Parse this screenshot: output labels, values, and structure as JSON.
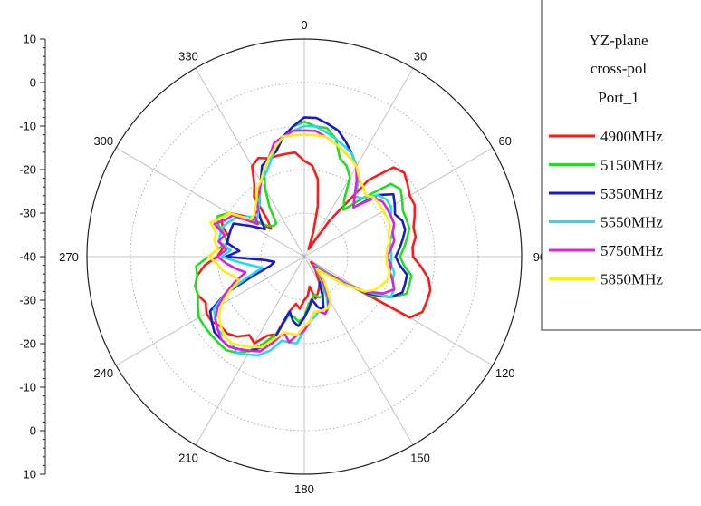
{
  "chart_data": {
    "type": "polar-line",
    "legend_title_lines": [
      "YZ-plane",
      "cross-pol",
      "Port_1"
    ],
    "legend_placement": "right",
    "radial_axis": {
      "min": -40,
      "max": 10,
      "step": 10,
      "tick_labels_upper": [
        "10",
        "0",
        "-10",
        "-20",
        "-30",
        "-40"
      ],
      "tick_labels_lower": [
        "-30",
        "-20",
        "-10",
        "0",
        "10"
      ]
    },
    "angle_labels": [
      "0",
      "30",
      "60",
      "90",
      "120",
      "150",
      "180",
      "210",
      "240",
      "270",
      "300",
      "330"
    ],
    "grid": true,
    "series": [
      {
        "name": "4900MHz",
        "color": "#ff1a1a",
        "values": [
          -18,
          -19,
          -22,
          -28,
          -34,
          -37,
          -38,
          -30,
          -17,
          -11,
          -10,
          -11,
          -12,
          -12,
          -13,
          -14,
          -14,
          -15,
          -15,
          -13,
          -11,
          -10,
          -10,
          -10,
          -12,
          -33,
          -38,
          -37,
          -36,
          -35,
          -33,
          -32,
          -31,
          -30,
          -33,
          -31,
          -30,
          -28,
          -29,
          -27,
          -21,
          -20,
          -17,
          -18,
          -16,
          -15,
          -15,
          -14,
          -14,
          -15,
          -14,
          -14,
          -15,
          -17,
          -20,
          -21,
          -22,
          -22,
          -20,
          -19,
          -20,
          -24,
          -30,
          -28,
          -22,
          -20,
          -16,
          -15,
          -16,
          -16,
          -16,
          -16
        ]
      },
      {
        "name": "5150MHz",
        "color": "#22dd22",
        "values": [
          -9,
          -10,
          -10,
          -12,
          -16,
          -17,
          -19,
          -24,
          -26,
          -21,
          -14,
          -13,
          -14,
          -15,
          -15,
          -15,
          -16,
          -17,
          -18,
          -17,
          -15,
          -15,
          -15,
          -18,
          -22,
          -30,
          -37,
          -36,
          -35,
          -33,
          -31,
          -30,
          -30,
          -31,
          -30,
          -29,
          -26,
          -25,
          -26,
          -26,
          -21,
          -18,
          -15,
          -13,
          -12,
          -12,
          -12,
          -12,
          -12,
          -13,
          -14,
          -14,
          -15,
          -15,
          -18,
          -20,
          -22,
          -21,
          -19,
          -18,
          -20,
          -25,
          -29,
          -30,
          -30,
          -26,
          -22,
          -18,
          -16,
          -15,
          -12,
          -10
        ]
      },
      {
        "name": "5350MHz",
        "color": "#1a1acc",
        "values": [
          -8,
          -8,
          -9,
          -10,
          -12,
          -14,
          -16,
          -19,
          -22,
          -24,
          -18,
          -15,
          -16,
          -17,
          -16,
          -16,
          -17,
          -18,
          -19,
          -18,
          -16,
          -16,
          -16,
          -18,
          -23,
          -30,
          -37,
          -37,
          -35,
          -33,
          -33,
          -30,
          -27,
          -28,
          -30,
          -28,
          -26,
          -24,
          -25,
          -27,
          -20,
          -17,
          -15,
          -14,
          -13,
          -13,
          -13,
          -14,
          -15,
          -20,
          -28,
          -32,
          -33,
          -31,
          -22,
          -25,
          -22,
          -22,
          -22,
          -22,
          -26,
          -29,
          -27,
          -25,
          -24,
          -22,
          -20,
          -17,
          -16,
          -15,
          -12,
          -10
        ]
      },
      {
        "name": "5550MHz",
        "color": "#22ddee",
        "values": [
          -10,
          -10,
          -11,
          -12,
          -13,
          -14,
          -16,
          -18,
          -22,
          -21,
          -18,
          -17,
          -17,
          -18,
          -18,
          -19,
          -20,
          -20,
          -20,
          -20,
          -19,
          -19,
          -18,
          -18,
          -24,
          -31,
          -37,
          -37,
          -35,
          -33,
          -30,
          -27,
          -26,
          -27,
          -26,
          -25,
          -23,
          -20,
          -20,
          -20,
          -17,
          -15,
          -14,
          -13,
          -14,
          -14,
          -14,
          -15,
          -16,
          -20,
          -26,
          -30,
          -28,
          -25,
          -21,
          -23,
          -20,
          -20,
          -20,
          -21,
          -22,
          -24,
          -26,
          -25,
          -24,
          -22,
          -20,
          -19,
          -17,
          -14,
          -12,
          -11
        ]
      },
      {
        "name": "5750MHz",
        "color": "#dd22dd",
        "values": [
          -11,
          -11,
          -12,
          -13,
          -14,
          -15,
          -16,
          -19,
          -22,
          -24,
          -19,
          -18,
          -18,
          -18,
          -18,
          -19,
          -19,
          -20,
          -21,
          -20,
          -20,
          -19,
          -18,
          -20,
          -24,
          -30,
          -35,
          -37,
          -34,
          -32,
          -29,
          -27,
          -26,
          -27,
          -27,
          -25,
          -23,
          -22,
          -20,
          -22,
          -19,
          -16,
          -15,
          -14,
          -13,
          -13,
          -14,
          -15,
          -17,
          -20,
          -23,
          -26,
          -24,
          -22,
          -20,
          -22,
          -20,
          -21,
          -18,
          -20,
          -21,
          -27,
          -25,
          -25,
          -23,
          -22,
          -20,
          -18,
          -16,
          -13,
          -12,
          -11
        ]
      },
      {
        "name": "5850MHz",
        "color": "#ffee11",
        "values": [
          -12,
          -12,
          -12,
          -13,
          -14,
          -15,
          -16,
          -18,
          -19,
          -20,
          -19,
          -19,
          -19,
          -19,
          -19,
          -20,
          -20,
          -21,
          -21,
          -21,
          -20,
          -20,
          -21,
          -22,
          -24,
          -29,
          -34,
          -36,
          -33,
          -31,
          -28,
          -27,
          -27,
          -27,
          -27,
          -25,
          -24,
          -22,
          -22,
          -22,
          -20,
          -17,
          -16,
          -15,
          -14,
          -14,
          -15,
          -16,
          -18,
          -21,
          -24,
          -23,
          -21,
          -20,
          -18,
          -20,
          -19,
          -19,
          -17,
          -19,
          -20,
          -25,
          -25,
          -24,
          -23,
          -21,
          -20,
          -18,
          -16,
          -14,
          -12,
          -12
        ]
      }
    ]
  }
}
